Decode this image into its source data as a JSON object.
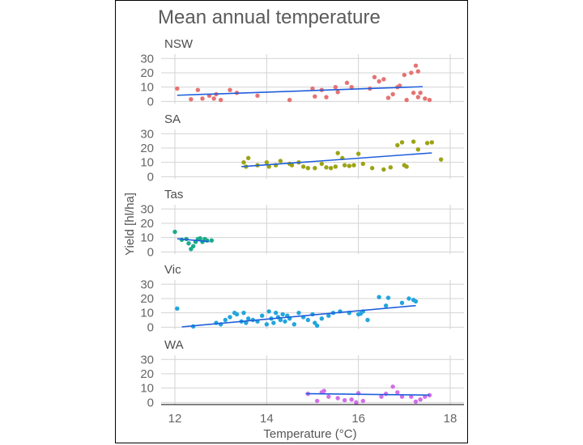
{
  "chart_data": {
    "type": "scatter",
    "title": "Mean annual temperature",
    "xlabel": "Temperature (°C)",
    "ylabel": "Yield [hl/ha]",
    "xlim": [
      11.7,
      18.3
    ],
    "ylim": [
      -1.5,
      33
    ],
    "x_ticks": [
      12,
      14,
      16,
      18
    ],
    "y_ticks": [
      0,
      10,
      20,
      30
    ],
    "grid": true,
    "trend_color": "#1f5fdc",
    "panels": [
      {
        "name": "NSW",
        "color": "#e57373",
        "trend": {
          "x": [
            12.05,
            17.4
          ],
          "y": [
            4.3,
            10.3
          ]
        },
        "points": [
          [
            12.05,
            9
          ],
          [
            12.35,
            1.5
          ],
          [
            12.5,
            8
          ],
          [
            12.6,
            2
          ],
          [
            12.75,
            4
          ],
          [
            12.85,
            2
          ],
          [
            12.9,
            5
          ],
          [
            13.0,
            1
          ],
          [
            13.2,
            8
          ],
          [
            13.35,
            6
          ],
          [
            13.8,
            4
          ],
          [
            14.5,
            1
          ],
          [
            15.0,
            9
          ],
          [
            15.05,
            3.5
          ],
          [
            15.2,
            8
          ],
          [
            15.3,
            3
          ],
          [
            15.5,
            10
          ],
          [
            15.55,
            6.5
          ],
          [
            15.75,
            13
          ],
          [
            15.85,
            10
          ],
          [
            16.25,
            9
          ],
          [
            16.35,
            17
          ],
          [
            16.45,
            14
          ],
          [
            16.55,
            15.5
          ],
          [
            16.65,
            2.5
          ],
          [
            16.75,
            5
          ],
          [
            16.85,
            10
          ],
          [
            16.9,
            11
          ],
          [
            17.0,
            18.5
          ],
          [
            17.05,
            1
          ],
          [
            17.15,
            20
          ],
          [
            17.25,
            25
          ],
          [
            17.3,
            21
          ],
          [
            17.2,
            6
          ],
          [
            17.3,
            3
          ],
          [
            17.35,
            6
          ],
          [
            17.45,
            2
          ],
          [
            17.55,
            1
          ]
        ]
      },
      {
        "name": "SA",
        "color": "#9ca315",
        "trend": {
          "x": [
            13.45,
            17.6
          ],
          "y": [
            7.0,
            16.6
          ]
        },
        "points": [
          [
            13.5,
            10
          ],
          [
            13.6,
            13
          ],
          [
            13.55,
            7
          ],
          [
            13.8,
            8
          ],
          [
            14.0,
            10
          ],
          [
            14.05,
            7
          ],
          [
            14.2,
            8
          ],
          [
            14.3,
            11
          ],
          [
            14.5,
            9
          ],
          [
            14.55,
            8
          ],
          [
            14.7,
            10
          ],
          [
            14.8,
            7
          ],
          [
            14.9,
            6
          ],
          [
            15.05,
            6
          ],
          [
            15.2,
            9
          ],
          [
            15.3,
            6.5
          ],
          [
            15.4,
            6
          ],
          [
            15.5,
            7
          ],
          [
            15.55,
            16.5
          ],
          [
            15.65,
            13
          ],
          [
            15.7,
            8
          ],
          [
            15.8,
            7.5
          ],
          [
            15.9,
            8
          ],
          [
            16.0,
            16
          ],
          [
            16.1,
            9
          ],
          [
            16.3,
            6
          ],
          [
            16.55,
            5
          ],
          [
            16.7,
            6.5
          ],
          [
            16.85,
            22
          ],
          [
            16.95,
            24
          ],
          [
            17.0,
            8
          ],
          [
            17.05,
            7
          ],
          [
            17.2,
            24.5
          ],
          [
            17.3,
            19
          ],
          [
            17.5,
            23.5
          ],
          [
            17.6,
            24
          ],
          [
            17.8,
            12
          ]
        ]
      },
      {
        "name": "Tas",
        "color": "#1aab8a",
        "trend": {
          "x": [
            12.05,
            12.75
          ],
          "y": [
            9.2,
            7.2
          ]
        },
        "points": [
          [
            12.0,
            14
          ],
          [
            12.15,
            8.5
          ],
          [
            12.25,
            9
          ],
          [
            12.3,
            6
          ],
          [
            12.35,
            2
          ],
          [
            12.4,
            4
          ],
          [
            12.45,
            7
          ],
          [
            12.5,
            9
          ],
          [
            12.55,
            9.5
          ],
          [
            12.6,
            7
          ],
          [
            12.65,
            9
          ],
          [
            12.7,
            8
          ],
          [
            12.8,
            8
          ]
        ]
      },
      {
        "name": "Vic",
        "color": "#22a6dc",
        "trend": {
          "x": [
            12.15,
            17.25
          ],
          "y": [
            0.2,
            15.1
          ]
        },
        "points": [
          [
            12.05,
            13
          ],
          [
            12.4,
            0.5
          ],
          [
            12.9,
            3
          ],
          [
            13.0,
            2
          ],
          [
            13.1,
            5
          ],
          [
            13.2,
            7
          ],
          [
            13.3,
            10
          ],
          [
            13.35,
            9
          ],
          [
            13.45,
            4
          ],
          [
            13.5,
            10
          ],
          [
            13.55,
            3
          ],
          [
            13.6,
            6
          ],
          [
            13.7,
            5
          ],
          [
            13.8,
            4
          ],
          [
            13.9,
            8
          ],
          [
            14.0,
            2
          ],
          [
            14.05,
            11
          ],
          [
            14.1,
            6
          ],
          [
            14.15,
            3
          ],
          [
            14.2,
            10
          ],
          [
            14.25,
            7
          ],
          [
            14.3,
            5
          ],
          [
            14.35,
            9
          ],
          [
            14.4,
            4
          ],
          [
            14.45,
            8
          ],
          [
            14.5,
            6
          ],
          [
            14.6,
            2
          ],
          [
            14.7,
            10
          ],
          [
            14.8,
            7
          ],
          [
            14.9,
            5
          ],
          [
            15.0,
            9
          ],
          [
            15.05,
            3
          ],
          [
            15.1,
            1
          ],
          [
            15.2,
            6
          ],
          [
            15.35,
            8
          ],
          [
            15.45,
            10
          ],
          [
            15.6,
            11
          ],
          [
            15.8,
            10
          ],
          [
            16.0,
            9
          ],
          [
            16.05,
            9.5
          ],
          [
            16.1,
            11
          ],
          [
            16.2,
            5
          ],
          [
            16.45,
            21
          ],
          [
            16.6,
            15
          ],
          [
            16.65,
            20.5
          ],
          [
            16.95,
            17
          ],
          [
            17.1,
            20
          ],
          [
            17.2,
            19
          ],
          [
            17.25,
            18
          ]
        ]
      },
      {
        "name": "WA",
        "color": "#d16ee8",
        "trend": {
          "x": [
            14.85,
            17.55
          ],
          "y": [
            6.1,
            5.1
          ]
        },
        "points": [
          [
            14.9,
            6
          ],
          [
            15.1,
            1
          ],
          [
            15.2,
            7
          ],
          [
            15.25,
            8
          ],
          [
            15.35,
            4
          ],
          [
            15.55,
            3
          ],
          [
            15.7,
            1.5
          ],
          [
            15.85,
            2
          ],
          [
            15.95,
            0
          ],
          [
            16.0,
            6.5
          ],
          [
            16.1,
            1
          ],
          [
            16.5,
            4
          ],
          [
            16.6,
            6
          ],
          [
            16.75,
            11
          ],
          [
            16.85,
            7
          ],
          [
            16.95,
            4
          ],
          [
            17.15,
            4
          ],
          [
            17.25,
            0.5
          ],
          [
            17.35,
            2
          ],
          [
            17.45,
            4
          ],
          [
            17.55,
            5
          ]
        ]
      }
    ]
  }
}
